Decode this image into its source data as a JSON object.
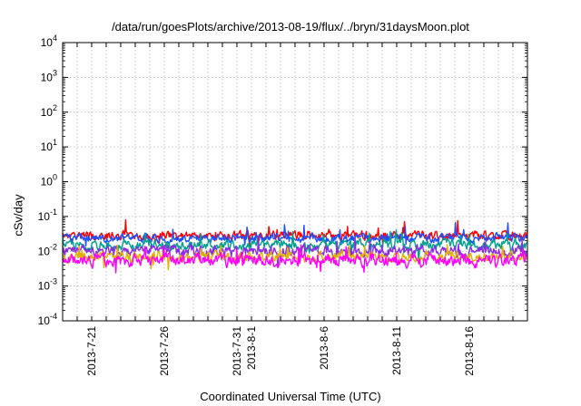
{
  "chart_data": {
    "type": "line",
    "title": "/data/run/goesPlots/archive/2013-08-19/flux/../bryn/31daysMoon.plot",
    "xlabel": "Coordinated Universal Time (UTC)",
    "ylabel": "cSv/day",
    "yscale": "log",
    "ylim": [
      0.0001,
      10000
    ],
    "xlim": [
      "2013-07-19",
      "2013-08-20"
    ],
    "y_ticks": [
      {
        "mantissa": "10",
        "exp": "-4",
        "value": 0.0001
      },
      {
        "mantissa": "10",
        "exp": "-3",
        "value": 0.001
      },
      {
        "mantissa": "10",
        "exp": "-2",
        "value": 0.01
      },
      {
        "mantissa": "10",
        "exp": "-1",
        "value": 0.1
      },
      {
        "mantissa": "10",
        "exp": "0",
        "value": 1
      },
      {
        "mantissa": "10",
        "exp": "1",
        "value": 10
      },
      {
        "mantissa": "10",
        "exp": "2",
        "value": 100
      },
      {
        "mantissa": "10",
        "exp": "3",
        "value": 1000
      },
      {
        "mantissa": "10",
        "exp": "4",
        "value": 10000
      }
    ],
    "x_tick_labels": [
      "2013-7-21",
      "2013-7-26",
      "2013-7-31",
      "2013-8-1",
      "2013-8-6",
      "2013-8-11",
      "2013-8-16"
    ],
    "grid": true,
    "legend": "none",
    "series": [
      {
        "color": "#ff0000",
        "level": 0.028,
        "spread": 0.22,
        "seed": 11
      },
      {
        "color": "#1a4fff",
        "level": 0.024,
        "spread": 0.22,
        "seed": 23
      },
      {
        "color": "#00a08c",
        "level": 0.015,
        "spread": 0.25,
        "seed": 37
      },
      {
        "color": "#8a2be2",
        "level": 0.01,
        "spread": 0.28,
        "seed": 41
      },
      {
        "color": "#e0b000",
        "level": 0.007,
        "spread": 0.25,
        "seed": 53
      },
      {
        "color": "#ff00ff",
        "level": 0.0055,
        "spread": 0.32,
        "seed": 67
      }
    ]
  }
}
